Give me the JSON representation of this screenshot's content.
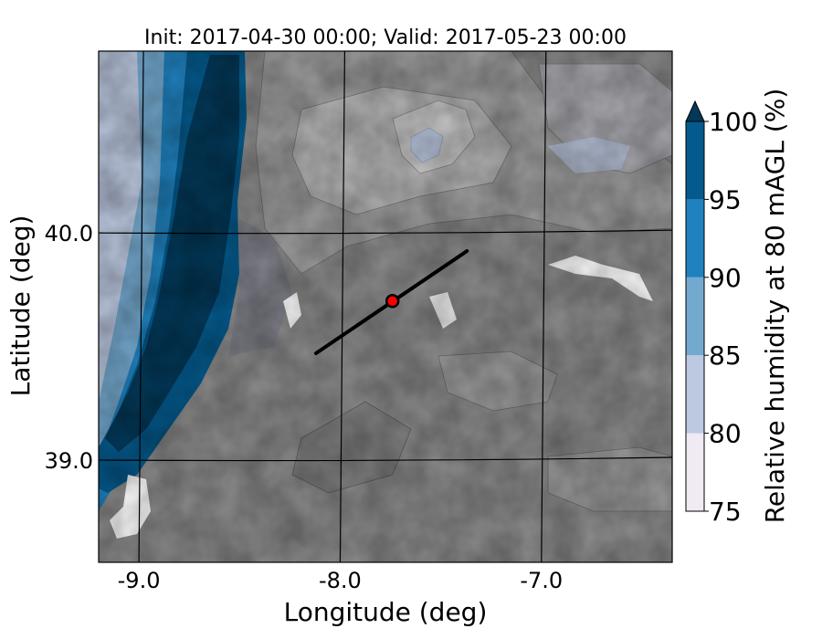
{
  "chart_data": {
    "type": "heatmap",
    "title": "Init: 2017-04-30 00:00; Valid: 2017-05-23 00:00",
    "xlabel": "Longitude (deg)",
    "ylabel": "Latitude (deg)",
    "x_ticks": [
      {
        "value": -9.0,
        "label": "-9.0"
      },
      {
        "value": -8.0,
        "label": "-8.0"
      },
      {
        "value": -7.0,
        "label": "-7.0"
      }
    ],
    "y_ticks": [
      {
        "value": 40.0,
        "label": "40.0"
      },
      {
        "value": 39.0,
        "label": "39.0"
      }
    ],
    "xlim": [
      -9.2,
      -6.35
    ],
    "ylim": [
      38.55,
      40.8
    ],
    "grid": true,
    "colorbar": {
      "label": "Relative humidity at 80 mAGL (%)",
      "levels": [
        75,
        80,
        85,
        90,
        95,
        100
      ],
      "tick_labels": [
        "75",
        "80",
        "85",
        "90",
        "95",
        "100"
      ],
      "colors": [
        "#efeaf4",
        "#bdc9e1",
        "#74a9cf",
        "#1f82bf",
        "#045a8d",
        "#023858"
      ],
      "extend": "max"
    },
    "terrain_color": "#8c8c8c",
    "cross_section": {
      "start": [
        -8.12,
        39.47
      ],
      "end": [
        -7.37,
        39.92
      ],
      "color": "#000000"
    },
    "marker": {
      "lon": -7.74,
      "lat": 39.7,
      "color": "#ff0000"
    }
  }
}
